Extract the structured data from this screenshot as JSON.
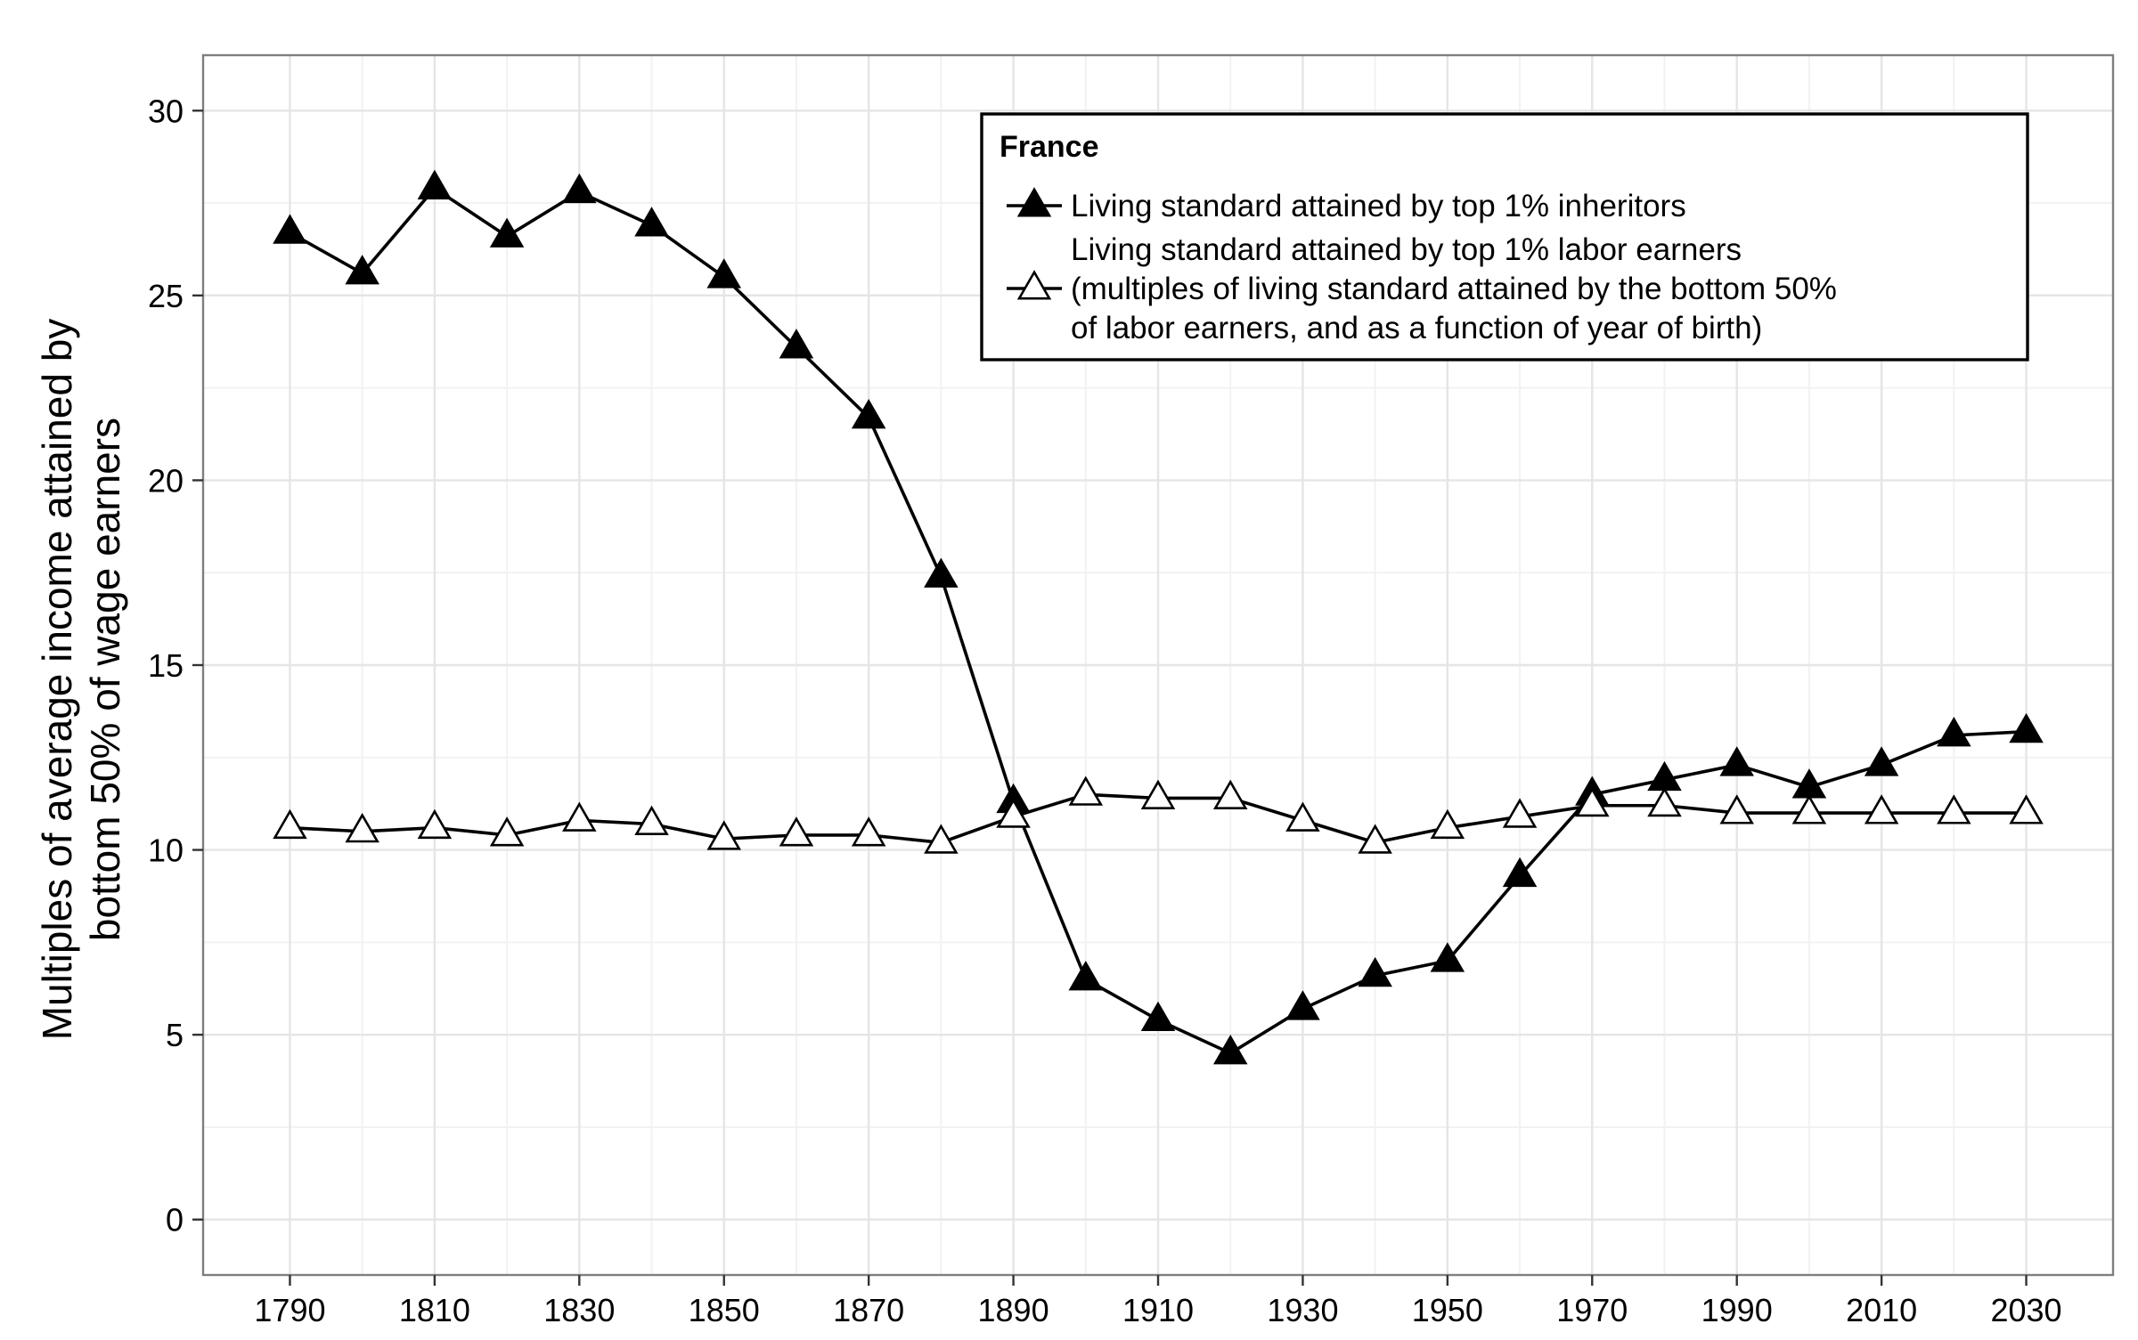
{
  "chart_data": {
    "type": "line",
    "ylabel_lines": [
      "Multiples of average income attained by",
      "bottom 50% of wage earners"
    ],
    "xlabel": "",
    "x": [
      1790,
      1800,
      1810,
      1820,
      1830,
      1840,
      1850,
      1860,
      1870,
      1880,
      1890,
      1900,
      1910,
      1920,
      1930,
      1940,
      1950,
      1960,
      1970,
      1980,
      1990,
      2000,
      2010,
      2020,
      2030
    ],
    "x_tick_labels": [
      "1790",
      "1810",
      "1830",
      "1850",
      "1870",
      "1890",
      "1910",
      "1930",
      "1950",
      "1970",
      "1990",
      "2010",
      "2030"
    ],
    "x_tick_values": [
      1790,
      1810,
      1830,
      1850,
      1870,
      1890,
      1910,
      1930,
      1950,
      1970,
      1990,
      2010,
      2030
    ],
    "y_tick_labels": [
      "0",
      "5",
      "10",
      "15",
      "20",
      "25",
      "30"
    ],
    "y_tick_values": [
      0,
      5,
      10,
      15,
      20,
      25,
      30
    ],
    "xlim": [
      1778,
      2042
    ],
    "ylim": [
      -1.5,
      31.5
    ],
    "grid": true,
    "legend": {
      "title": "France",
      "placement": "top-right",
      "entries": [
        [
          "Living standard attained by top 1% inheritors"
        ],
        [
          "Living standard attained by top 1% labor earners",
          "(multiples of living standard attained by the bottom 50%",
          "of labor earners, and as a function of year of birth)"
        ]
      ]
    },
    "series": [
      {
        "marker": "filled-triangle",
        "values": [
          26.7,
          25.6,
          27.9,
          26.6,
          27.8,
          26.9,
          25.5,
          23.6,
          21.7,
          17.4,
          11.3,
          6.5,
          5.4,
          4.5,
          5.7,
          6.6,
          7.0,
          9.3,
          11.5,
          11.9,
          12.3,
          11.7,
          12.3,
          13.1,
          13.2
        ]
      },
      {
        "marker": "open-triangle",
        "values": [
          10.6,
          10.5,
          10.6,
          10.4,
          10.8,
          10.7,
          10.3,
          10.4,
          10.4,
          10.2,
          10.9,
          11.5,
          11.4,
          11.4,
          10.8,
          10.2,
          10.6,
          10.9,
          11.2,
          11.2,
          11.0,
          11.0,
          11.0,
          11.0,
          11.0
        ]
      }
    ],
    "colors": {
      "line": "#000000",
      "panel_border": "#7f7f7f",
      "grid_major": "#e5e5e5",
      "grid_minor": "#f2f2f2"
    }
  }
}
